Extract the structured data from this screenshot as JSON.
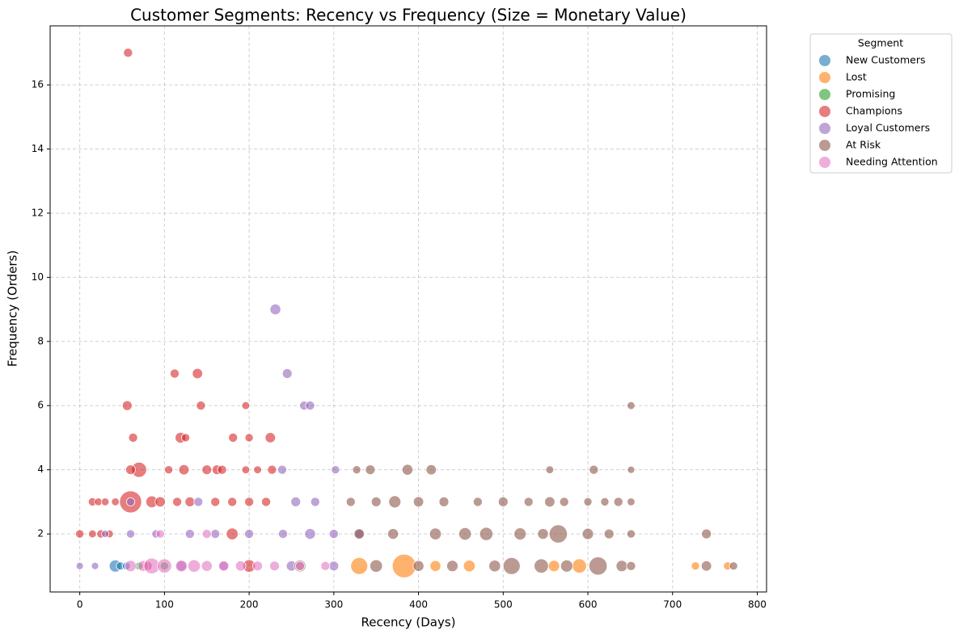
{
  "chart_data": {
    "type": "scatter",
    "title": "Customer Segments: Recency vs Frequency (Size = Monetary Value)",
    "x_label": "Recency (Days)",
    "y_label": "Frequency (Orders)",
    "legend_title": "Segment",
    "legend": "outside-right",
    "grid": true,
    "xlim": [
      -35,
      811
    ],
    "ylim": [
      0.19,
      17.84
    ],
    "xticks": [
      0,
      100,
      200,
      300,
      400,
      500,
      600,
      700,
      800
    ],
    "yticks": [
      2,
      4,
      6,
      8,
      10,
      12,
      14,
      16
    ],
    "series": [
      {
        "name": "New Customers",
        "color": "#1f77b4",
        "x": [
          42,
          48,
          55
        ],
        "values": [
          1,
          1,
          1
        ],
        "sizes": [
          900,
          200,
          150
        ]
      },
      {
        "name": "Lost",
        "color": "#ff7f0e",
        "x": [
          383,
          330,
          727,
          765,
          590,
          460,
          420,
          560
        ],
        "values": [
          1,
          1,
          1,
          1,
          1,
          1,
          1,
          1
        ],
        "sizes": [
          6000,
          2500,
          200,
          200,
          1500,
          800,
          600,
          700
        ]
      },
      {
        "name": "Promising",
        "color": "#2ca02c",
        "x": [
          70,
          100
        ],
        "values": [
          1,
          1
        ],
        "sizes": [
          150,
          200
        ]
      },
      {
        "name": "Champions",
        "color": "#d62728",
        "x": [
          57,
          112,
          139,
          56,
          143,
          196,
          63,
          119,
          125,
          181,
          200,
          225,
          70,
          60,
          105,
          123,
          150,
          162,
          168,
          196,
          210,
          227,
          60,
          15,
          22,
          30,
          42,
          85,
          95,
          115,
          130,
          160,
          180,
          200,
          220,
          0,
          15,
          25,
          35,
          180,
          80,
          200
        ],
        "values": [
          17,
          7,
          7,
          6,
          6,
          6,
          5,
          5,
          5,
          5,
          5,
          5,
          4,
          4,
          4,
          4,
          4,
          4,
          4,
          4,
          4,
          4,
          3,
          3,
          3,
          3,
          3,
          3,
          3,
          3,
          3,
          3,
          3,
          3,
          3,
          2,
          2,
          2,
          2,
          2,
          1,
          1
        ],
        "sizes": [
          300,
          300,
          500,
          400,
          300,
          150,
          300,
          600,
          200,
          300,
          200,
          500,
          1800,
          400,
          200,
          500,
          400,
          400,
          300,
          150,
          150,
          300,
          5000,
          200,
          150,
          150,
          150,
          800,
          500,
          300,
          400,
          300,
          300,
          300,
          300,
          200,
          150,
          200,
          150,
          800,
          300,
          1000
        ]
      },
      {
        "name": "Loyal Customers",
        "color": "#9467bd",
        "x": [
          231,
          245,
          265,
          272,
          239,
          302,
          30,
          60,
          90,
          130,
          160,
          200,
          240,
          272,
          300,
          330,
          60,
          140,
          255,
          278,
          0,
          18,
          120,
          250,
          300,
          170
        ],
        "values": [
          9,
          7,
          6,
          6,
          4,
          4,
          2,
          2,
          2,
          2,
          2,
          2,
          2,
          2,
          2,
          2,
          3,
          3,
          3,
          3,
          1,
          1,
          1,
          1,
          1,
          1
        ],
        "sizes": [
          600,
          400,
          300,
          300,
          300,
          200,
          100,
          200,
          200,
          300,
          300,
          300,
          300,
          600,
          300,
          300,
          200,
          300,
          400,
          300,
          100,
          100,
          500,
          500,
          400,
          300
        ]
      },
      {
        "name": "At Risk",
        "color": "#8c564b",
        "x": [
          327,
          343,
          387,
          415,
          555,
          607,
          651,
          651,
          320,
          350,
          372,
          400,
          430,
          470,
          500,
          530,
          555,
          572,
          600,
          620,
          636,
          651,
          330,
          370,
          420,
          455,
          480,
          520,
          547,
          565,
          600,
          625,
          651,
          740,
          350,
          400,
          440,
          490,
          510,
          545,
          575,
          612,
          640,
          651,
          740,
          772,
          260
        ],
        "values": [
          4,
          4,
          4,
          4,
          4,
          4,
          4,
          6,
          3,
          3,
          3,
          3,
          3,
          3,
          3,
          3,
          3,
          3,
          3,
          3,
          3,
          3,
          2,
          2,
          2,
          2,
          2,
          2,
          2,
          2,
          2,
          2,
          2,
          2,
          1,
          1,
          1,
          1,
          1,
          1,
          1,
          1,
          1,
          1,
          1,
          1,
          1
        ],
        "sizes": [
          200,
          400,
          600,
          500,
          150,
          300,
          100,
          150,
          300,
          400,
          900,
          500,
          400,
          300,
          400,
          300,
          500,
          300,
          200,
          200,
          300,
          150,
          500,
          600,
          800,
          1000,
          1200,
          900,
          600,
          3000,
          700,
          400,
          200,
          400,
          1000,
          600,
          700,
          800,
          2500,
          1500,
          900,
          3000,
          700,
          300,
          500,
          200,
          800
        ]
      },
      {
        "name": "Needing Attention",
        "color": "#e377c2",
        "x": [
          60,
          75,
          85,
          100,
          120,
          135,
          150,
          170,
          190,
          210,
          230,
          260,
          290,
          95,
          150
        ],
        "values": [
          1,
          1,
          1,
          1,
          1,
          1,
          1,
          1,
          1,
          1,
          1,
          1,
          1,
          2,
          2
        ],
        "sizes": [
          700,
          600,
          2000,
          1500,
          800,
          1000,
          600,
          500,
          500,
          400,
          400,
          300,
          300,
          200,
          300
        ]
      }
    ]
  }
}
